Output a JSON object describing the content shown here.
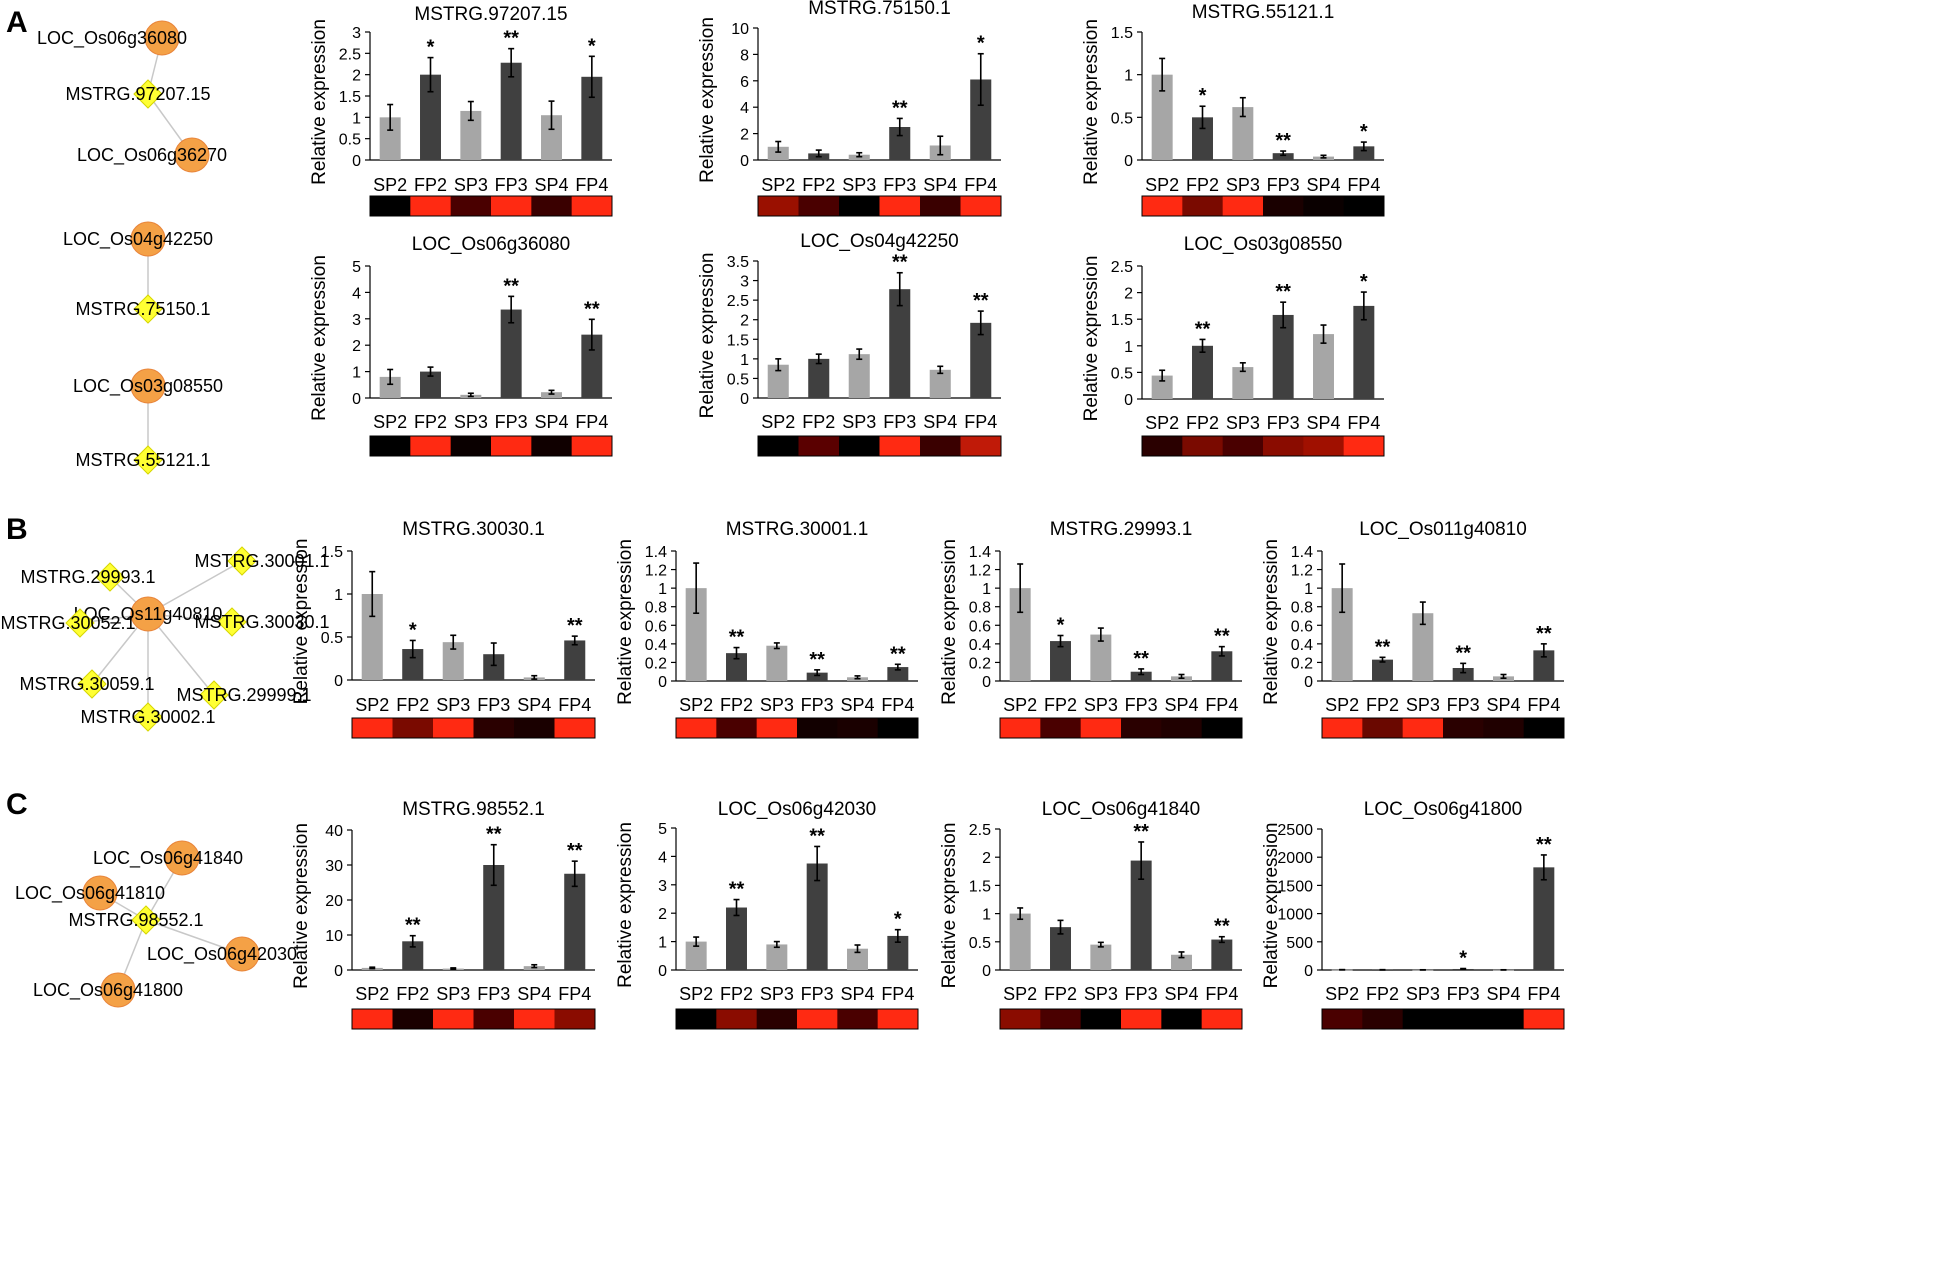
{
  "panels": [
    {
      "label": "A"
    },
    {
      "label": "B"
    },
    {
      "label": "C"
    }
  ],
  "networks": [
    {
      "name": "network-a1",
      "nodes": [
        {
          "id": "a1n1",
          "label": "LOC_Os06g36080",
          "kind": "gene"
        },
        {
          "id": "a1n2",
          "label": "MSTRG.97207.15",
          "kind": "lncrna"
        },
        {
          "id": "a1n3",
          "label": "LOC_Os06g36270",
          "kind": "gene"
        }
      ],
      "edges": [
        [
          "a1n1",
          "a1n2"
        ],
        [
          "a1n2",
          "a1n3"
        ]
      ]
    },
    {
      "name": "network-a2",
      "nodes": [
        {
          "id": "a2n1",
          "label": "LOC_Os04g42250",
          "kind": "gene"
        },
        {
          "id": "a2n2",
          "label": "MSTRG.75150.1",
          "kind": "lncrna"
        }
      ],
      "edges": [
        [
          "a2n1",
          "a2n2"
        ]
      ]
    },
    {
      "name": "network-a3",
      "nodes": [
        {
          "id": "a3n1",
          "label": "LOC_Os03g08550",
          "kind": "gene"
        },
        {
          "id": "a3n2",
          "label": "MSTRG.55121.1",
          "kind": "lncrna"
        }
      ],
      "edges": [
        [
          "a3n1",
          "a3n2"
        ]
      ]
    },
    {
      "name": "network-b",
      "nodes": [
        {
          "id": "bc",
          "label": "LOC_Os11g40810",
          "kind": "gene"
        },
        {
          "id": "b1",
          "label": "MSTRG.30001.1",
          "kind": "lncrna"
        },
        {
          "id": "b2",
          "label": "MSTRG.29993.1",
          "kind": "lncrna"
        },
        {
          "id": "b3",
          "label": "MSTRG.30052.1",
          "kind": "lncrna"
        },
        {
          "id": "b4",
          "label": "MSTRG.30030.1",
          "kind": "lncrna"
        },
        {
          "id": "b5",
          "label": "MSTRG.30059.1",
          "kind": "lncrna"
        },
        {
          "id": "b6",
          "label": "MSTRG.29999.1",
          "kind": "lncrna"
        },
        {
          "id": "b7",
          "label": "MSTRG.30002.1",
          "kind": "lncrna"
        }
      ],
      "edges": [
        [
          "bc",
          "b1"
        ],
        [
          "bc",
          "b2"
        ],
        [
          "bc",
          "b3"
        ],
        [
          "bc",
          "b4"
        ],
        [
          "bc",
          "b5"
        ],
        [
          "bc",
          "b6"
        ],
        [
          "bc",
          "b7"
        ]
      ]
    },
    {
      "name": "network-c",
      "nodes": [
        {
          "id": "c1",
          "label": "LOC_Os06g41840",
          "kind": "gene"
        },
        {
          "id": "c2",
          "label": "LOC_Os06g41810",
          "kind": "gene"
        },
        {
          "id": "cc",
          "label": "MSTRG.98552.1",
          "kind": "lncrna"
        },
        {
          "id": "c3",
          "label": "LOC_Os06g42030",
          "kind": "gene"
        },
        {
          "id": "c4",
          "label": "LOC_Os06g41800",
          "kind": "gene"
        }
      ],
      "edges": [
        [
          "cc",
          "c1"
        ],
        [
          "cc",
          "c2"
        ],
        [
          "cc",
          "c3"
        ],
        [
          "cc",
          "c4"
        ]
      ]
    }
  ],
  "colors": {
    "sp_bar": "#a6a6a6",
    "fp_bar": "#404040",
    "gene_node": "#f4a146",
    "lncrna_node": "#ffff33",
    "edge": "#c8c8c8"
  },
  "chart_data": [
    {
      "type": "bar",
      "title": "MSTRG.97207.15",
      "ylabel": "Relative expression",
      "categories": [
        "SP2",
        "FP2",
        "SP3",
        "FP3",
        "SP4",
        "FP4"
      ],
      "values": [
        1.0,
        2.0,
        1.15,
        2.28,
        1.05,
        1.95
      ],
      "errors": [
        0.3,
        0.4,
        0.22,
        0.33,
        0.33,
        0.48
      ],
      "sig": [
        "",
        "*",
        "",
        "**",
        "",
        "*"
      ],
      "ylim": [
        0,
        3
      ],
      "yticks": [
        0,
        0.5,
        1,
        1.5,
        2,
        2.5,
        3
      ],
      "heatmap": [
        "#000000",
        "#ff2a12",
        "#4a0000",
        "#ff2a12",
        "#3a0000",
        "#ff2a12"
      ]
    },
    {
      "type": "bar",
      "title": "MSTRG.75150.1",
      "ylabel": "Relative expression",
      "categories": [
        "SP2",
        "FP2",
        "SP3",
        "FP3",
        "SP4",
        "FP4"
      ],
      "values": [
        1.0,
        0.5,
        0.4,
        2.5,
        1.1,
        6.1
      ],
      "errors": [
        0.4,
        0.25,
        0.15,
        0.65,
        0.7,
        1.95
      ],
      "sig": [
        "",
        "",
        "",
        "**",
        "",
        "*"
      ],
      "ylim": [
        0,
        10
      ],
      "yticks": [
        0,
        2,
        4,
        6,
        8,
        10
      ],
      "heatmap": [
        "#9a1000",
        "#4a0000",
        "#000000",
        "#ff2a12",
        "#3a0000",
        "#ff2a12"
      ]
    },
    {
      "type": "bar",
      "title": "MSTRG.55121.1",
      "ylabel": "Relative expression",
      "categories": [
        "SP2",
        "FP2",
        "SP3",
        "FP3",
        "SP4",
        "FP4"
      ],
      "values": [
        1.0,
        0.5,
        0.62,
        0.08,
        0.04,
        0.16
      ],
      "errors": [
        0.19,
        0.13,
        0.11,
        0.025,
        0.015,
        0.05
      ],
      "sig": [
        "",
        "*",
        "",
        "**",
        "",
        "*"
      ],
      "ylim": [
        0,
        1.5
      ],
      "yticks": [
        0,
        0.5,
        1,
        1.5
      ],
      "heatmap": [
        "#ff2a12",
        "#7a0a00",
        "#ff2a12",
        "#1a0000",
        "#0a0000",
        "#000000"
      ]
    },
    {
      "type": "bar",
      "title": "LOC_Os06g36080",
      "ylabel": "Relative expression",
      "categories": [
        "SP2",
        "FP2",
        "SP3",
        "FP3",
        "SP4",
        "FP4"
      ],
      "values": [
        0.8,
        1.0,
        0.12,
        3.35,
        0.22,
        2.4
      ],
      "errors": [
        0.28,
        0.17,
        0.06,
        0.5,
        0.07,
        0.58
      ],
      "sig": [
        "",
        "",
        "",
        "**",
        "",
        "**"
      ],
      "ylim": [
        0,
        5
      ],
      "yticks": [
        0,
        1,
        2,
        3,
        4,
        5
      ],
      "heatmap": [
        "#000000",
        "#ff2a12",
        "#0a0000",
        "#ff2a12",
        "#100000",
        "#ff2a12"
      ]
    },
    {
      "type": "bar",
      "title": "LOC_Os04g42250",
      "ylabel": "Relative expression",
      "categories": [
        "SP2",
        "FP2",
        "SP3",
        "FP3",
        "SP4",
        "FP4"
      ],
      "values": [
        0.85,
        1.0,
        1.12,
        2.78,
        0.72,
        1.92
      ],
      "errors": [
        0.15,
        0.12,
        0.13,
        0.42,
        0.09,
        0.3
      ],
      "sig": [
        "",
        "",
        "",
        "**",
        "",
        "**"
      ],
      "ylim": [
        0,
        3.5
      ],
      "yticks": [
        0,
        0.5,
        1,
        1.5,
        2,
        2.5,
        3,
        3.5
      ],
      "heatmap": [
        "#000000",
        "#5a0000",
        "#000000",
        "#ff2a12",
        "#3a0000",
        "#c01a08"
      ]
    },
    {
      "type": "bar",
      "title": "LOC_Os03g08550",
      "ylabel": "Relative expression",
      "categories": [
        "SP2",
        "FP2",
        "SP3",
        "FP3",
        "SP4",
        "FP4"
      ],
      "values": [
        0.44,
        1.0,
        0.6,
        1.58,
        1.22,
        1.75
      ],
      "errors": [
        0.1,
        0.12,
        0.08,
        0.24,
        0.17,
        0.26
      ],
      "sig": [
        "",
        "**",
        "",
        "**",
        "",
        "*"
      ],
      "ylim": [
        0,
        2.5
      ],
      "yticks": [
        0,
        0.5,
        1,
        1.5,
        2,
        2.5
      ],
      "heatmap": [
        "#2a0000",
        "#7a0a00",
        "#4a0000",
        "#8a0c00",
        "#a01000",
        "#ff2a12"
      ]
    },
    {
      "type": "bar",
      "title": "MSTRG.30030.1",
      "ylabel": "Relative expression",
      "categories": [
        "SP2",
        "FP2",
        "SP3",
        "FP3",
        "SP4",
        "FP4"
      ],
      "values": [
        1.0,
        0.36,
        0.44,
        0.3,
        0.03,
        0.46
      ],
      "errors": [
        0.26,
        0.1,
        0.08,
        0.13,
        0.02,
        0.05
      ],
      "sig": [
        "",
        "*",
        "",
        "",
        "",
        "**"
      ],
      "ylim": [
        0,
        1.5
      ],
      "yticks": [
        0,
        0.5,
        1,
        1.5
      ],
      "heatmap": [
        "#ff2a12",
        "#7a0a00",
        "#ff2a12",
        "#2a0000",
        "#1a0000",
        "#ff2a12"
      ]
    },
    {
      "type": "bar",
      "title": "MSTRG.30001.1",
      "ylabel": "Relative expression",
      "categories": [
        "SP2",
        "FP2",
        "SP3",
        "FP3",
        "SP4",
        "FP4"
      ],
      "values": [
        1.0,
        0.3,
        0.38,
        0.09,
        0.04,
        0.15
      ],
      "errors": [
        0.27,
        0.06,
        0.03,
        0.03,
        0.015,
        0.03
      ],
      "sig": [
        "",
        "**",
        "",
        "**",
        "",
        "**"
      ],
      "ylim": [
        0,
        1.4
      ],
      "yticks": [
        0,
        0.2,
        0.4,
        0.6,
        0.8,
        1,
        1.2,
        1.4
      ],
      "heatmap": [
        "#ff2a12",
        "#4a0000",
        "#ff2a12",
        "#120000",
        "#1a0000",
        "#000000"
      ]
    },
    {
      "type": "bar",
      "title": "MSTRG.29993.1",
      "ylabel": "Relative expression",
      "categories": [
        "SP2",
        "FP2",
        "SP3",
        "FP3",
        "SP4",
        "FP4"
      ],
      "values": [
        1.0,
        0.43,
        0.5,
        0.1,
        0.05,
        0.32
      ],
      "errors": [
        0.26,
        0.06,
        0.07,
        0.03,
        0.02,
        0.05
      ],
      "sig": [
        "",
        "*",
        "",
        "**",
        "",
        "**"
      ],
      "ylim": [
        0,
        1.4
      ],
      "yticks": [
        0,
        0.2,
        0.4,
        0.6,
        0.8,
        1,
        1.2,
        1.4
      ],
      "heatmap": [
        "#ff2a12",
        "#4a0000",
        "#ff2a12",
        "#2a0000",
        "#200000",
        "#000000"
      ]
    },
    {
      "type": "bar",
      "title": "LOC_Os011g40810",
      "ylabel": "Relative expression",
      "categories": [
        "SP2",
        "FP2",
        "SP3",
        "FP3",
        "SP4",
        "FP4"
      ],
      "values": [
        1.0,
        0.23,
        0.73,
        0.14,
        0.05,
        0.33
      ],
      "errors": [
        0.26,
        0.025,
        0.12,
        0.05,
        0.02,
        0.07
      ],
      "sig": [
        "",
        "**",
        "",
        "**",
        "",
        "**"
      ],
      "ylim": [
        0,
        1.4
      ],
      "yticks": [
        0,
        0.2,
        0.4,
        0.6,
        0.8,
        1,
        1.2,
        1.4
      ],
      "heatmap": [
        "#ff2a12",
        "#6a0800",
        "#ff2a12",
        "#2a0000",
        "#200000",
        "#000000"
      ]
    },
    {
      "type": "bar",
      "title": "MSTRG.98552.1",
      "ylabel": "Relative expression",
      "categories": [
        "SP2",
        "FP2",
        "SP3",
        "FP3",
        "SP4",
        "FP4"
      ],
      "values": [
        0.6,
        8.2,
        0.4,
        30.0,
        1.1,
        27.5
      ],
      "errors": [
        0.2,
        1.6,
        0.2,
        5.8,
        0.4,
        3.6
      ],
      "sig": [
        "",
        "**",
        "",
        "**",
        "",
        "**"
      ],
      "ylim": [
        0,
        40
      ],
      "yticks": [
        0,
        10,
        20,
        30,
        40
      ],
      "heatmap": [
        "#ff2a12",
        "#1a0000",
        "#ff2a12",
        "#4a0000",
        "#ff2a12",
        "#8a0c00"
      ]
    },
    {
      "type": "bar",
      "title": "LOC_Os06g42030",
      "ylabel": "Relative expression",
      "categories": [
        "SP2",
        "FP2",
        "SP3",
        "FP3",
        "SP4",
        "FP4"
      ],
      "values": [
        1.0,
        2.2,
        0.9,
        3.75,
        0.75,
        1.2
      ],
      "errors": [
        0.16,
        0.28,
        0.1,
        0.6,
        0.13,
        0.22
      ],
      "sig": [
        "",
        "**",
        "",
        "**",
        "",
        "*"
      ],
      "ylim": [
        0,
        5
      ],
      "yticks": [
        0,
        1,
        2,
        3,
        4,
        5
      ],
      "heatmap": [
        "#000000",
        "#8a0c00",
        "#2a0000",
        "#ff2a12",
        "#4a0000",
        "#ff2a12"
      ]
    },
    {
      "type": "bar",
      "title": "LOC_Os06g41840",
      "ylabel": "Relative expression",
      "categories": [
        "SP2",
        "FP2",
        "SP3",
        "FP3",
        "SP4",
        "FP4"
      ],
      "values": [
        1.0,
        0.76,
        0.45,
        1.94,
        0.27,
        0.54
      ],
      "errors": [
        0.1,
        0.12,
        0.04,
        0.33,
        0.05,
        0.05
      ],
      "sig": [
        "",
        "",
        "",
        "**",
        "",
        "**"
      ],
      "ylim": [
        0,
        2.5
      ],
      "yticks": [
        0,
        0.5,
        1,
        1.5,
        2,
        2.5
      ],
      "heatmap": [
        "#8a0c00",
        "#4a0000",
        "#000000",
        "#ff2a12",
        "#000000",
        "#ff2a12"
      ]
    },
    {
      "type": "bar",
      "title": "LOC_Os06g41800",
      "ylabel": "Relative expression",
      "categories": [
        "SP2",
        "FP2",
        "SP3",
        "FP3",
        "SP4",
        "FP4"
      ],
      "values": [
        5,
        4,
        3,
        18,
        3,
        1820
      ],
      "errors": [
        2,
        2,
        1,
        8,
        1,
        220
      ],
      "sig": [
        "",
        "",
        "",
        "*",
        "",
        "**"
      ],
      "ylim": [
        0,
        2500
      ],
      "yticks": [
        0,
        500,
        1000,
        1500,
        2000,
        2500
      ],
      "heatmap": [
        "#4a0000",
        "#2a0000",
        "#000000",
        "#000000",
        "#000000",
        "#ff2a12"
      ]
    }
  ]
}
